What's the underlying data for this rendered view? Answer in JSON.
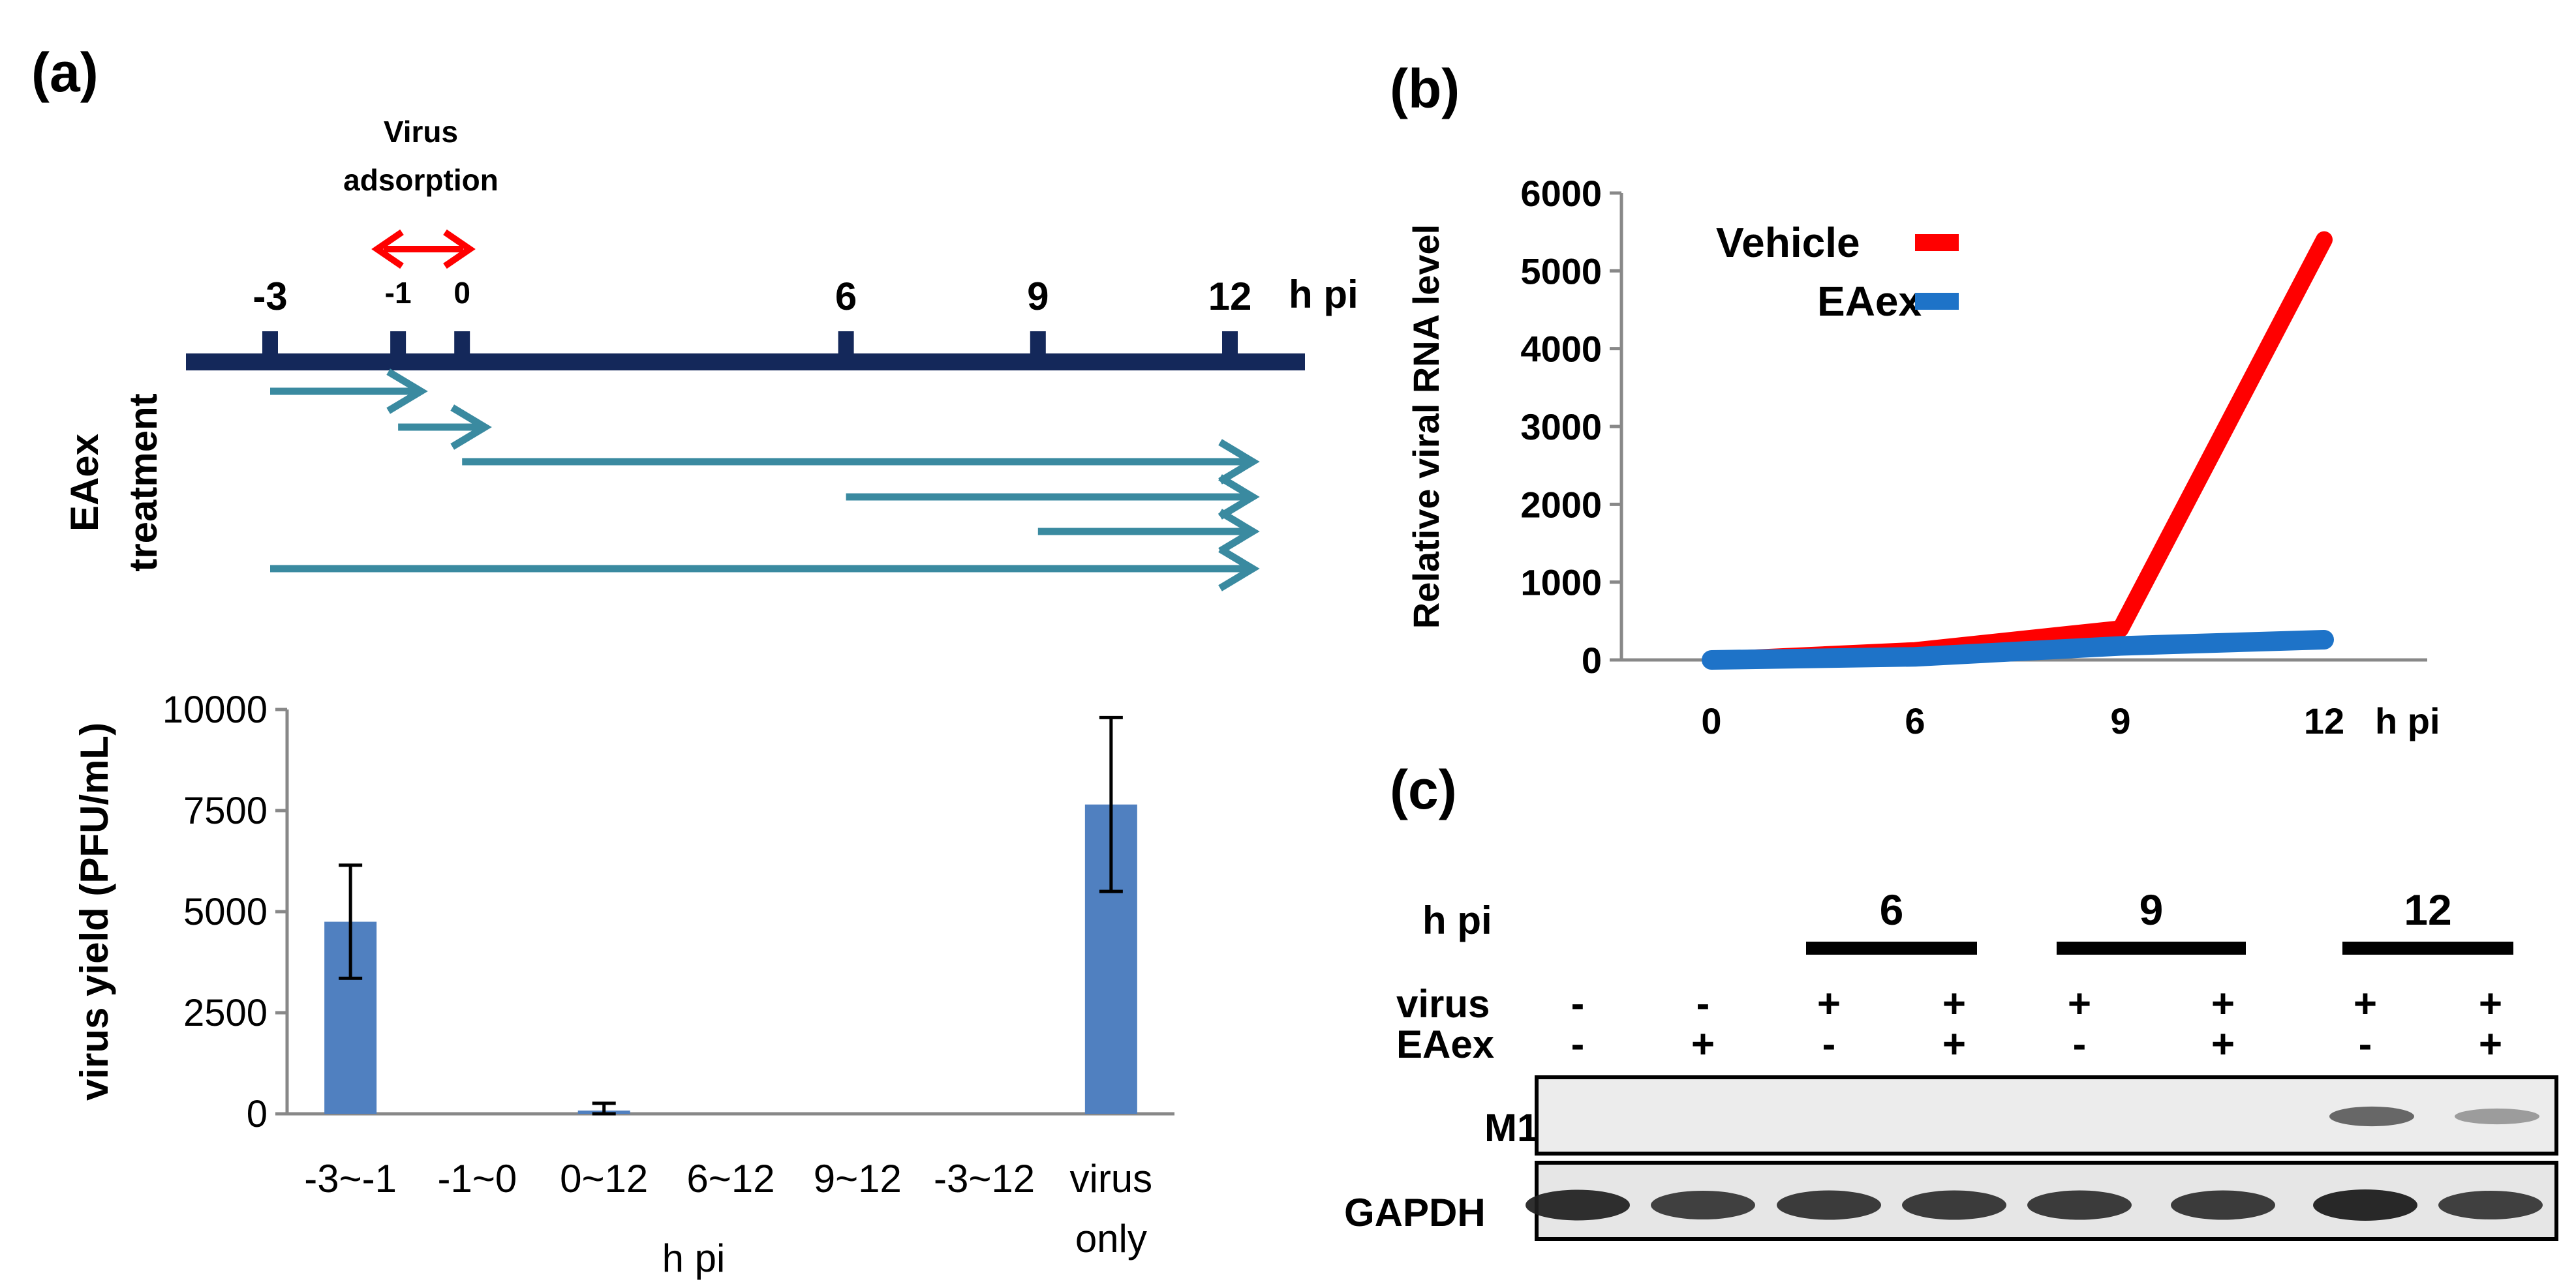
{
  "colors": {
    "navy": "#14285a",
    "teal": "#3a8aa0",
    "red": "#ff0000",
    "blue": "#1e73c8",
    "bar": "#5080c0",
    "axis": "#888888",
    "text": "#000000"
  },
  "panel_a": {
    "label": "(a)",
    "adsorption_label_1": "Virus",
    "adsorption_label_2": "adsorption",
    "axis_unit": "h pi",
    "ticks": [
      {
        "label": "-3",
        "t": -3,
        "small": false
      },
      {
        "label": "-1",
        "t": -1,
        "small": true
      },
      {
        "label": "0",
        "t": 0,
        "small": true
      },
      {
        "label": "6",
        "t": 6,
        "small": false
      },
      {
        "label": "9",
        "t": 9,
        "small": false
      },
      {
        "label": "12",
        "t": 12,
        "small": false
      }
    ],
    "side_label_1": "EAex",
    "side_label_2": "treatment",
    "treatments": [
      {
        "start": -3,
        "end": -1
      },
      {
        "start": -1,
        "end": 0
      },
      {
        "start": 0,
        "end": 12
      },
      {
        "start": 6,
        "end": 12
      },
      {
        "start": 9,
        "end": 12
      },
      {
        "start": -3,
        "end": 12
      }
    ]
  },
  "panel_b": {
    "label": "(b)",
    "unit": "h pi"
  },
  "panel_c": {
    "label": "(c)",
    "hpi_label": "h pi",
    "time_groups": [
      "6",
      "9",
      "12"
    ],
    "row_virus": "virus",
    "row_eaex": "EAex",
    "virus_signs": [
      "-",
      "-",
      "+",
      "+",
      "+",
      "+",
      "+",
      "+"
    ],
    "eaex_signs": [
      "-",
      "+",
      "-",
      "+",
      "-",
      "+",
      "-",
      "+"
    ],
    "blot_labels": [
      "M1",
      "GAPDH"
    ],
    "m1_intensity": [
      0,
      0,
      0,
      0,
      0,
      0,
      0.85,
      0.35
    ],
    "gapdh_intensity": [
      0.95,
      0.8,
      0.85,
      0.85,
      0.85,
      0.85,
      1.0,
      0.8
    ]
  },
  "chart_data": [
    {
      "type": "bar",
      "title": "",
      "categories": [
        "-3~-1",
        "-1~0",
        "0~12",
        "6~12",
        "9~12",
        "-3~12",
        "virus only"
      ],
      "values": [
        4750,
        0,
        80,
        0,
        0,
        0,
        7650
      ],
      "errors": [
        1400,
        0,
        180,
        0,
        0,
        0,
        2150
      ],
      "xlabel": "h pi",
      "ylabel": "virus yield (PFU/mL)",
      "ylim": [
        0,
        10000
      ],
      "yticks": [
        0,
        2500,
        5000,
        7500,
        10000
      ]
    },
    {
      "type": "line",
      "title": "",
      "x": [
        0,
        6,
        9,
        12
      ],
      "series": [
        {
          "name": "Vehicle",
          "values": [
            0,
            120,
            400,
            5400
          ]
        },
        {
          "name": "EAex",
          "values": [
            0,
            40,
            180,
            260
          ]
        }
      ],
      "xlabel": "h pi",
      "ylabel": "Relative viral RNA level",
      "ylim": [
        0,
        6000
      ],
      "yticks": [
        0,
        1000,
        2000,
        3000,
        4000,
        5000,
        6000
      ],
      "legend": "top-left"
    }
  ]
}
